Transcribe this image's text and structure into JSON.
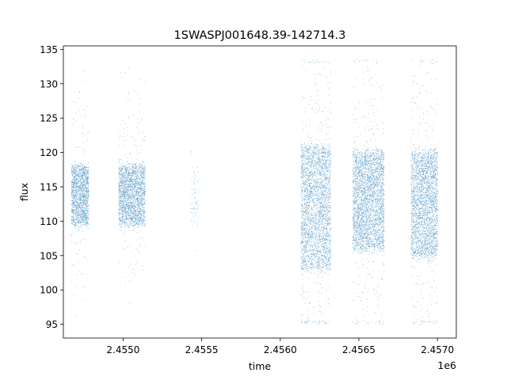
{
  "chart_data": {
    "type": "scatter",
    "title": "1SWASPJ001648.39-142714.3",
    "xlabel": "time",
    "ylabel": "flux",
    "x_offset_label": "1e6",
    "xlim": [
      2454620,
      2457120
    ],
    "ylim": [
      93,
      135.5
    ],
    "x_ticks": [
      2455000,
      2455500,
      2456000,
      2456500,
      2457000
    ],
    "x_tick_labels": [
      "2.4550",
      "2.4555",
      "2.4560",
      "2.4565",
      "2.4570"
    ],
    "y_ticks": [
      95,
      100,
      105,
      110,
      115,
      120,
      125,
      130,
      135
    ],
    "y_tick_labels": [
      "95",
      "100",
      "105",
      "110",
      "115",
      "120",
      "125",
      "130",
      "135"
    ],
    "grid": false,
    "marker_color": "#1f77b4",
    "series": [
      {
        "segments": [
          {
            "x_start": 2454670,
            "x_end": 2454780,
            "core_low": 109,
            "core_high": 118.5,
            "min": 95,
            "max": 133,
            "density": 0.9
          },
          {
            "x_start": 2454970,
            "x_end": 2455140,
            "core_low": 109,
            "core_high": 118.5,
            "min": 95,
            "max": 134,
            "density": 0.8
          },
          {
            "x_start": 2455430,
            "x_end": 2455480,
            "core_low": 109,
            "core_high": 118,
            "min": 95,
            "max": 128,
            "density": 0.08
          },
          {
            "x_start": 2456130,
            "x_end": 2456320,
            "core_low": 102,
            "core_high": 122,
            "min": 95,
            "max": 133.5,
            "density": 1.0
          },
          {
            "x_start": 2456460,
            "x_end": 2456660,
            "core_low": 105,
            "core_high": 121,
            "min": 95,
            "max": 133.5,
            "density": 1.0
          },
          {
            "x_start": 2456830,
            "x_end": 2457000,
            "core_low": 104,
            "core_high": 121,
            "min": 95,
            "max": 133.5,
            "density": 1.0
          }
        ]
      }
    ]
  }
}
